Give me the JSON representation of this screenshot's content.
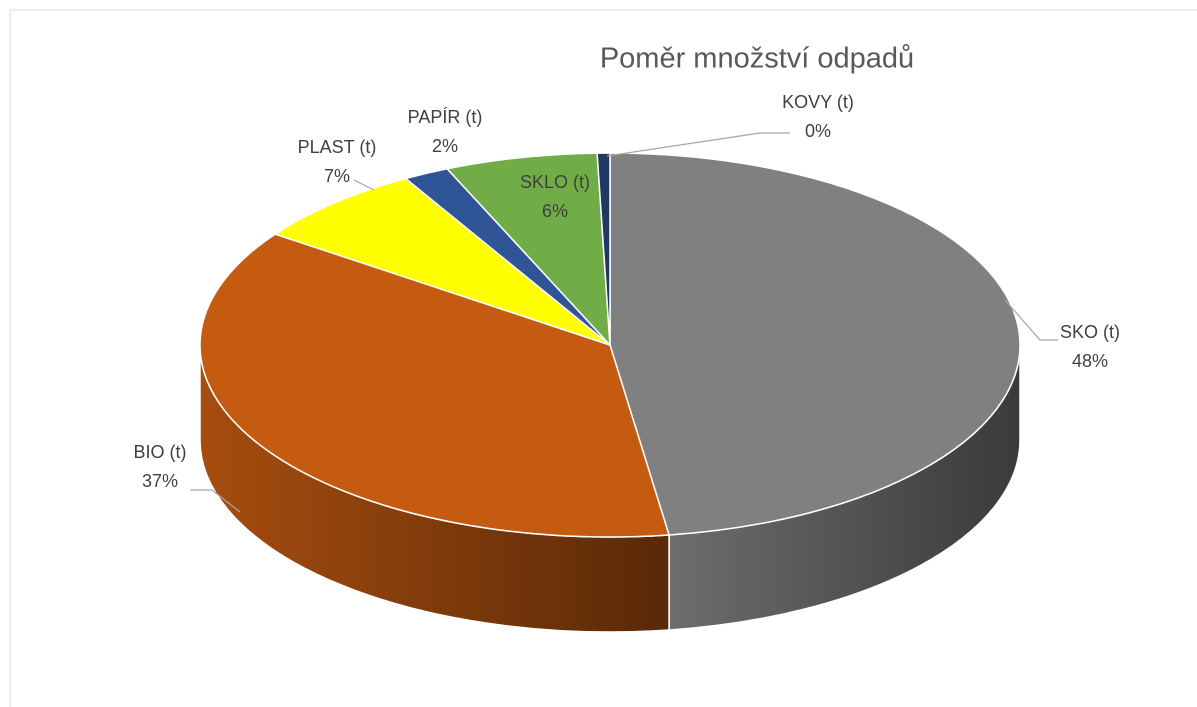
{
  "chart_data": {
    "type": "pie",
    "title": "Poměr množství odpadů",
    "categories": [
      "SKO (t)",
      "BIO (t)",
      "PLAST (t)",
      "PAPÍR (t)",
      "SKLO (t)",
      "KOVY (t)"
    ],
    "values": [
      47.7,
      37.1,
      6.9,
      1.8,
      6.0,
      0.5
    ],
    "value_labels": [
      "48%",
      "37%",
      "7%",
      "2%",
      "6%",
      "0%"
    ],
    "colors": [
      "#808080",
      "#c55a11",
      "#ffff00",
      "#2f5597",
      "#70ad47",
      "#203864"
    ]
  }
}
